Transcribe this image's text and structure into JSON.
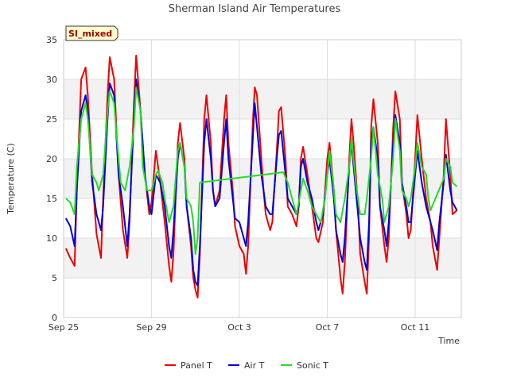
{
  "chart_data": {
    "type": "line",
    "title": "Sherman Island Air Temperatures",
    "xlabel": "Time",
    "ylabel": "Temperature (C)",
    "badge": "SI_mixed",
    "x_unit": "date (Sep 25 to Oct 12)",
    "x_ticks": [
      {
        "label": "Sep 25",
        "day": 0
      },
      {
        "label": "Sep 29",
        "day": 4
      },
      {
        "label": "Oct 3",
        "day": 8
      },
      {
        "label": "Oct 7",
        "day": 12
      },
      {
        "label": "Oct 11",
        "day": 16
      }
    ],
    "xlim_days": [
      0,
      18.1
    ],
    "ylim": [
      0,
      35
    ],
    "y_ticks": [
      "0",
      "5",
      "10",
      "15",
      "20",
      "25",
      "30",
      "35"
    ],
    "grid": true,
    "alternating_bands": true,
    "legend_position": "bottom-center",
    "series": [
      {
        "name": "Panel T",
        "color": "#ee0000",
        "points": [
          [
            0.1,
            8.7
          ],
          [
            0.3,
            7.5
          ],
          [
            0.5,
            6.5
          ],
          [
            0.6,
            16
          ],
          [
            0.8,
            30
          ],
          [
            1.0,
            31.5
          ],
          [
            1.1,
            28
          ],
          [
            1.3,
            18
          ],
          [
            1.5,
            10.5
          ],
          [
            1.7,
            7.5
          ],
          [
            1.8,
            15
          ],
          [
            2.0,
            28
          ],
          [
            2.1,
            32.8
          ],
          [
            2.3,
            30
          ],
          [
            2.5,
            18
          ],
          [
            2.7,
            11
          ],
          [
            2.9,
            7.5
          ],
          [
            3.0,
            12
          ],
          [
            3.2,
            27
          ],
          [
            3.3,
            33
          ],
          [
            3.5,
            26
          ],
          [
            3.7,
            18
          ],
          [
            3.9,
            13
          ],
          [
            4.0,
            14.5
          ],
          [
            4.2,
            21
          ],
          [
            4.4,
            17
          ],
          [
            4.6,
            12
          ],
          [
            4.8,
            6.5
          ],
          [
            4.9,
            4.5
          ],
          [
            5.0,
            8
          ],
          [
            5.2,
            22
          ],
          [
            5.3,
            24.5
          ],
          [
            5.5,
            20
          ],
          [
            5.6,
            14
          ],
          [
            5.8,
            9
          ],
          [
            5.9,
            5
          ],
          [
            6.0,
            3.5
          ],
          [
            6.1,
            2.5
          ],
          [
            6.2,
            8
          ],
          [
            6.4,
            25
          ],
          [
            6.5,
            28
          ],
          [
            6.7,
            22
          ],
          [
            6.8,
            16
          ],
          [
            6.9,
            14
          ],
          [
            7.1,
            16
          ],
          [
            7.3,
            25
          ],
          [
            7.4,
            28
          ],
          [
            7.5,
            22
          ],
          [
            7.7,
            16
          ],
          [
            7.8,
            11.5
          ],
          [
            8.0,
            9
          ],
          [
            8.2,
            8
          ],
          [
            8.3,
            5.5
          ],
          [
            8.4,
            9
          ],
          [
            8.6,
            24
          ],
          [
            8.7,
            29
          ],
          [
            8.8,
            28
          ],
          [
            9.0,
            20
          ],
          [
            9.1,
            16
          ],
          [
            9.2,
            13
          ],
          [
            9.4,
            11
          ],
          [
            9.5,
            12
          ],
          [
            9.7,
            21
          ],
          [
            9.8,
            26
          ],
          [
            9.9,
            26.5
          ],
          [
            10.1,
            20
          ],
          [
            10.2,
            14
          ],
          [
            10.4,
            13
          ],
          [
            10.6,
            11.5
          ],
          [
            10.7,
            14
          ],
          [
            10.8,
            20
          ],
          [
            10.9,
            21.5
          ],
          [
            11.1,
            18
          ],
          [
            11.3,
            14
          ],
          [
            11.5,
            10
          ],
          [
            11.6,
            9.5
          ],
          [
            11.8,
            12
          ],
          [
            12.0,
            20
          ],
          [
            12.1,
            22
          ],
          [
            12.3,
            16
          ],
          [
            12.4,
            11
          ],
          [
            12.6,
            5
          ],
          [
            12.7,
            3
          ],
          [
            12.8,
            7
          ],
          [
            13.0,
            20
          ],
          [
            13.1,
            25
          ],
          [
            13.2,
            22
          ],
          [
            13.4,
            14
          ],
          [
            13.5,
            8
          ],
          [
            13.7,
            4.5
          ],
          [
            13.8,
            3
          ],
          [
            13.9,
            10
          ],
          [
            14.0,
            24
          ],
          [
            14.1,
            27.5
          ],
          [
            14.3,
            22
          ],
          [
            14.4,
            14
          ],
          [
            14.6,
            9
          ],
          [
            14.7,
            7
          ],
          [
            14.8,
            10
          ],
          [
            15.0,
            24
          ],
          [
            15.1,
            28.5
          ],
          [
            15.3,
            25
          ],
          [
            15.4,
            17
          ],
          [
            15.6,
            13
          ],
          [
            15.7,
            10
          ],
          [
            15.8,
            11
          ],
          [
            16.0,
            20
          ],
          [
            16.1,
            25.5
          ],
          [
            16.3,
            20
          ],
          [
            16.5,
            15
          ],
          [
            16.7,
            12
          ],
          [
            16.8,
            9
          ],
          [
            17.0,
            6
          ],
          [
            17.1,
            10
          ],
          [
            17.3,
            18
          ],
          [
            17.4,
            25
          ],
          [
            17.6,
            18
          ],
          [
            17.7,
            13
          ],
          [
            17.9,
            13.5
          ]
        ]
      },
      {
        "name": "Air T",
        "color": "#0000dd",
        "points": [
          [
            0.1,
            12.5
          ],
          [
            0.3,
            11.5
          ],
          [
            0.5,
            9
          ],
          [
            0.6,
            16
          ],
          [
            0.8,
            26
          ],
          [
            1.0,
            28
          ],
          [
            1.1,
            26
          ],
          [
            1.3,
            17
          ],
          [
            1.5,
            13
          ],
          [
            1.7,
            11
          ],
          [
            1.8,
            14
          ],
          [
            2.0,
            25
          ],
          [
            2.1,
            29.5
          ],
          [
            2.3,
            28
          ],
          [
            2.5,
            18
          ],
          [
            2.7,
            14
          ],
          [
            2.9,
            9
          ],
          [
            3.0,
            13
          ],
          [
            3.2,
            25
          ],
          [
            3.3,
            30
          ],
          [
            3.5,
            26
          ],
          [
            3.7,
            18
          ],
          [
            3.9,
            14
          ],
          [
            4.0,
            13
          ],
          [
            4.2,
            18
          ],
          [
            4.4,
            17
          ],
          [
            4.6,
            14
          ],
          [
            4.8,
            9
          ],
          [
            4.9,
            7.5
          ],
          [
            5.0,
            11
          ],
          [
            5.2,
            20
          ],
          [
            5.3,
            22
          ],
          [
            5.5,
            19
          ],
          [
            5.6,
            14
          ],
          [
            5.8,
            10
          ],
          [
            5.9,
            6
          ],
          [
            6.0,
            4.5
          ],
          [
            6.1,
            4
          ],
          [
            6.2,
            9
          ],
          [
            6.4,
            22
          ],
          [
            6.5,
            25
          ],
          [
            6.7,
            20
          ],
          [
            6.8,
            16
          ],
          [
            6.9,
            14
          ],
          [
            7.1,
            15
          ],
          [
            7.3,
            22
          ],
          [
            7.4,
            25
          ],
          [
            7.5,
            20
          ],
          [
            7.7,
            15
          ],
          [
            7.8,
            12.5
          ],
          [
            8.0,
            12
          ],
          [
            8.2,
            10
          ],
          [
            8.3,
            9
          ],
          [
            8.4,
            12
          ],
          [
            8.6,
            22
          ],
          [
            8.7,
            27
          ],
          [
            8.8,
            24
          ],
          [
            9.0,
            18
          ],
          [
            9.1,
            16
          ],
          [
            9.2,
            14
          ],
          [
            9.4,
            13
          ],
          [
            9.5,
            13
          ],
          [
            9.7,
            20
          ],
          [
            9.8,
            23
          ],
          [
            9.9,
            23.5
          ],
          [
            10.1,
            18
          ],
          [
            10.2,
            15
          ],
          [
            10.4,
            14
          ],
          [
            10.6,
            13
          ],
          [
            10.7,
            14
          ],
          [
            10.8,
            19
          ],
          [
            10.9,
            20
          ],
          [
            11.1,
            17
          ],
          [
            11.3,
            15
          ],
          [
            11.5,
            12
          ],
          [
            11.6,
            11
          ],
          [
            11.8,
            13
          ],
          [
            12.0,
            18
          ],
          [
            12.1,
            20
          ],
          [
            12.3,
            15
          ],
          [
            12.4,
            11
          ],
          [
            12.6,
            8
          ],
          [
            12.7,
            7
          ],
          [
            12.8,
            10
          ],
          [
            13.0,
            19
          ],
          [
            13.1,
            22
          ],
          [
            13.2,
            19
          ],
          [
            13.4,
            13
          ],
          [
            13.5,
            10
          ],
          [
            13.7,
            7
          ],
          [
            13.8,
            6
          ],
          [
            13.9,
            12
          ],
          [
            14.0,
            22
          ],
          [
            14.1,
            24
          ],
          [
            14.3,
            20
          ],
          [
            14.4,
            14
          ],
          [
            14.6,
            11
          ],
          [
            14.7,
            9
          ],
          [
            14.8,
            12
          ],
          [
            15.0,
            22
          ],
          [
            15.1,
            25.5
          ],
          [
            15.3,
            22
          ],
          [
            15.4,
            17
          ],
          [
            15.6,
            14
          ],
          [
            15.7,
            12
          ],
          [
            15.8,
            12
          ],
          [
            16.0,
            18
          ],
          [
            16.1,
            21
          ],
          [
            16.3,
            17
          ],
          [
            16.5,
            14
          ],
          [
            16.7,
            12
          ],
          [
            16.8,
            11
          ],
          [
            17.0,
            8.5
          ],
          [
            17.1,
            12
          ],
          [
            17.3,
            17
          ],
          [
            17.4,
            20.5
          ],
          [
            17.6,
            16
          ],
          [
            17.7,
            14.5
          ],
          [
            17.9,
            13.5
          ]
        ]
      },
      {
        "name": "Sonic T",
        "color": "#22dd22",
        "points": [
          [
            0.1,
            15
          ],
          [
            0.3,
            14.5
          ],
          [
            0.5,
            13
          ],
          [
            0.6,
            19
          ],
          [
            0.8,
            25
          ],
          [
            1.0,
            27
          ],
          [
            1.1,
            25
          ],
          [
            1.3,
            18
          ],
          [
            1.5,
            17
          ],
          [
            1.6,
            16
          ],
          [
            1.8,
            18
          ],
          [
            2.0,
            26
          ],
          [
            2.1,
            28.5
          ],
          [
            2.3,
            27
          ],
          [
            2.5,
            20
          ],
          [
            2.6,
            17
          ],
          [
            2.8,
            16
          ],
          [
            3.0,
            19
          ],
          [
            3.2,
            24
          ],
          [
            3.3,
            29
          ],
          [
            3.5,
            26
          ],
          [
            3.6,
            19
          ],
          [
            3.8,
            16
          ],
          [
            4.0,
            16
          ],
          [
            4.2,
            18
          ],
          [
            4.3,
            18.5
          ],
          [
            4.5,
            17
          ],
          [
            4.6,
            15
          ],
          [
            4.8,
            12
          ],
          [
            5.0,
            14
          ],
          [
            5.2,
            21
          ],
          [
            5.3,
            22
          ],
          [
            5.5,
            19
          ],
          [
            5.6,
            15
          ],
          [
            5.8,
            14
          ],
          [
            5.9,
            12
          ],
          [
            6.0,
            8
          ],
          [
            6.1,
            10
          ],
          [
            6.2,
            17
          ],
          [
            10.0,
            18.3
          ],
          [
            10.2,
            17
          ],
          [
            10.4,
            15
          ],
          [
            10.6,
            13
          ],
          [
            10.8,
            16
          ],
          [
            10.9,
            17.5
          ],
          [
            11.1,
            16
          ],
          [
            11.3,
            14
          ],
          [
            11.5,
            13
          ],
          [
            11.7,
            12
          ],
          [
            11.9,
            15
          ],
          [
            12.0,
            18
          ],
          [
            12.1,
            21
          ],
          [
            12.3,
            16
          ],
          [
            12.4,
            13
          ],
          [
            12.6,
            12
          ],
          [
            12.8,
            15
          ],
          [
            13.0,
            19
          ],
          [
            13.1,
            22.5
          ],
          [
            13.3,
            17
          ],
          [
            13.5,
            13
          ],
          [
            13.7,
            13
          ],
          [
            13.8,
            15
          ],
          [
            14.0,
            20
          ],
          [
            14.1,
            24
          ],
          [
            14.3,
            18
          ],
          [
            14.5,
            15
          ],
          [
            14.6,
            12
          ],
          [
            14.8,
            14
          ],
          [
            15.0,
            20
          ],
          [
            15.1,
            25
          ],
          [
            15.3,
            21
          ],
          [
            15.4,
            16
          ],
          [
            15.6,
            15
          ],
          [
            15.7,
            14
          ],
          [
            15.8,
            15
          ],
          [
            16.0,
            19
          ],
          [
            16.1,
            22
          ],
          [
            16.3,
            19
          ],
          [
            16.5,
            18
          ],
          [
            16.6,
            15
          ],
          [
            16.7,
            13.5
          ],
          [
            17.3,
            17.5
          ],
          [
            17.4,
            20
          ],
          [
            17.6,
            19
          ],
          [
            17.7,
            17
          ],
          [
            17.9,
            16.5
          ]
        ]
      }
    ]
  }
}
